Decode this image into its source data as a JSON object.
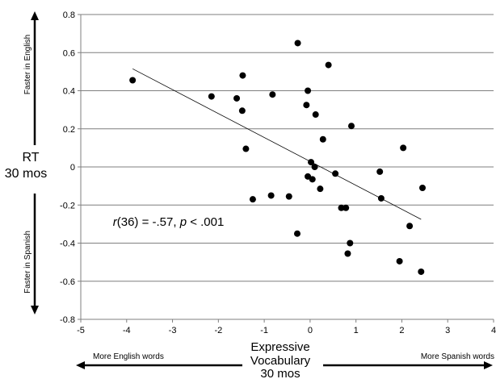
{
  "chart_data": {
    "type": "scatter",
    "xlabel_lines": [
      "Expressive",
      "Vocabulary",
      "30 mos"
    ],
    "ylabel_lines": [
      "RT",
      "30 mos"
    ],
    "xlim": [
      -5,
      4
    ],
    "ylim": [
      -0.8,
      0.8
    ],
    "x_ticks": [
      -5,
      -4,
      -3,
      -2,
      -1,
      0,
      1,
      2,
      3,
      4
    ],
    "x_tick_labels": [
      "-5",
      "-4",
      "-3",
      "-2",
      "-1",
      "0",
      "1",
      "2",
      "3",
      "4"
    ],
    "y_ticks": [
      -0.8,
      -0.6,
      -0.4,
      -0.2,
      0,
      0.2,
      0.4,
      0.6,
      0.8
    ],
    "y_tick_labels": [
      "-0.8",
      "-0.6",
      "-0.4",
      "-0.2",
      "0",
      "0.2",
      "0.4",
      "0.6",
      "0.8"
    ],
    "grid": "horizontal",
    "series": [
      {
        "points": [
          {
            "x": -3.87,
            "y": 0.455
          },
          {
            "x": -2.15,
            "y": 0.37
          },
          {
            "x": -1.6,
            "y": 0.36
          },
          {
            "x": -1.47,
            "y": 0.48
          },
          {
            "x": -1.48,
            "y": 0.295
          },
          {
            "x": -1.4,
            "y": 0.095
          },
          {
            "x": -1.25,
            "y": -0.17
          },
          {
            "x": -0.82,
            "y": 0.38
          },
          {
            "x": -0.85,
            "y": -0.15
          },
          {
            "x": -0.46,
            "y": -0.155
          },
          {
            "x": -0.27,
            "y": 0.65
          },
          {
            "x": -0.28,
            "y": -0.35
          },
          {
            "x": 0.4,
            "y": 0.535
          },
          {
            "x": -0.08,
            "y": 0.325
          },
          {
            "x": -0.05,
            "y": 0.4
          },
          {
            "x": 0.12,
            "y": 0.275
          },
          {
            "x": 0.02,
            "y": 0.025
          },
          {
            "x": 0.1,
            "y": 0.0
          },
          {
            "x": -0.05,
            "y": -0.05
          },
          {
            "x": 0.05,
            "y": -0.065
          },
          {
            "x": 0.22,
            "y": -0.115
          },
          {
            "x": 0.28,
            "y": 0.145
          },
          {
            "x": 0.55,
            "y": -0.035
          },
          {
            "x": 0.68,
            "y": -0.215
          },
          {
            "x": 0.78,
            "y": -0.215
          },
          {
            "x": 0.9,
            "y": 0.215
          },
          {
            "x": 0.87,
            "y": -0.4
          },
          {
            "x": 0.82,
            "y": -0.455
          },
          {
            "x": 1.52,
            "y": -0.025
          },
          {
            "x": 1.55,
            "y": -0.165
          },
          {
            "x": 2.03,
            "y": 0.1
          },
          {
            "x": 2.17,
            "y": -0.31
          },
          {
            "x": 1.95,
            "y": -0.495
          },
          {
            "x": 2.45,
            "y": -0.11
          },
          {
            "x": 2.42,
            "y": -0.55
          }
        ]
      }
    ],
    "trendline": {
      "x": [
        -3.87,
        2.42
      ],
      "y": [
        0.515,
        -0.275
      ]
    },
    "annotation": {
      "r_italic": "r",
      "r_rest": "(36) = -.57, ",
      "p_italic": "p",
      "p_rest": " < .001",
      "x": -4.3,
      "y": -0.31
    },
    "y_top_label": "Faster in English",
    "y_bottom_label": "Faster in Spanish",
    "x_left_label": "More English words",
    "x_right_label": "More Spanish words"
  }
}
